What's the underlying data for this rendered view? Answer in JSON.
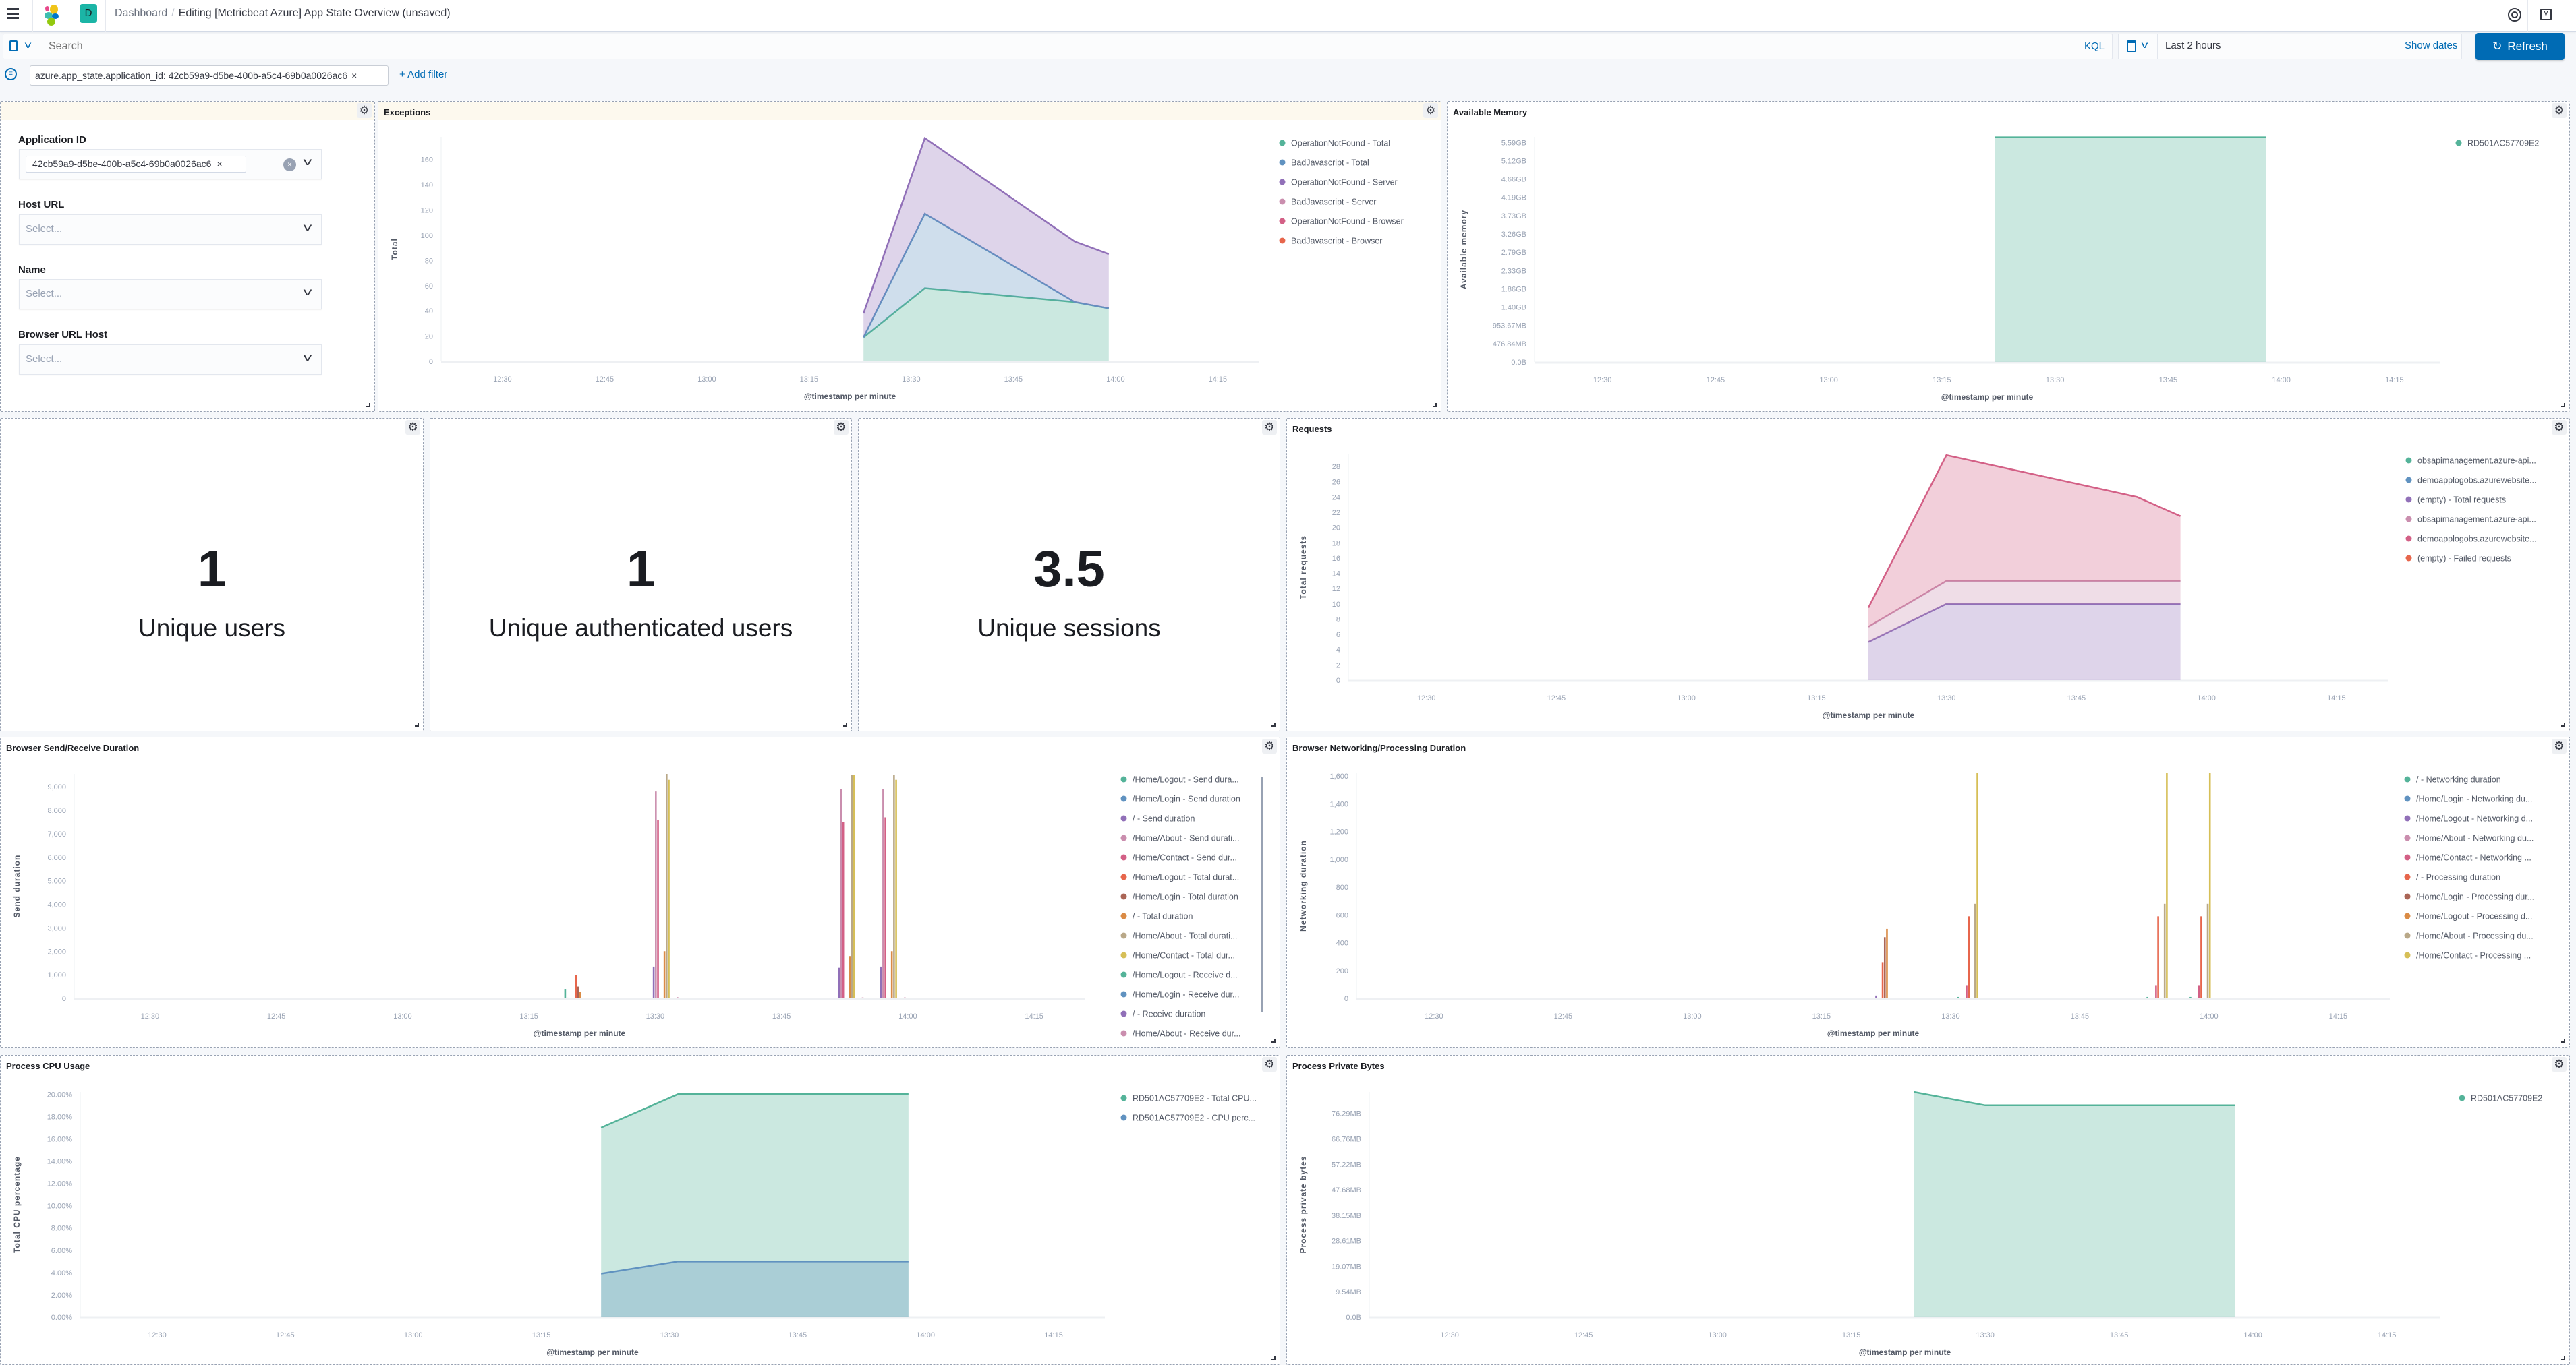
{
  "header": {
    "breadcrumb_root": "Dashboard",
    "breadcrumb_current": "Editing [Metricbeat Azure] App State Overview (unsaved)",
    "space_avatar": "D"
  },
  "query": {
    "placeholder": "Search",
    "language": "KQL",
    "time_range": "Last 2 hours",
    "show_dates": "Show dates",
    "refresh": "Refresh"
  },
  "filters": {
    "pill": "azure.app_state.application_id: 42cb59a9-d5be-400b-a5c4-69b0a0026ac6",
    "add": "+ Add filter"
  },
  "controls": {
    "application_id": {
      "label": "Application ID",
      "value": "42cb59a9-d5be-400b-a5c4-69b0a0026ac6"
    },
    "host_url": {
      "label": "Host URL",
      "placeholder": "Select..."
    },
    "name": {
      "label": "Name",
      "placeholder": "Select..."
    },
    "browser_url_host": {
      "label": "Browser URL Host",
      "placeholder": "Select..."
    }
  },
  "metrics": [
    {
      "value": "1",
      "label": "Unique users"
    },
    {
      "value": "1",
      "label": "Unique authenticated users"
    },
    {
      "value": "3.5",
      "label": "Unique sessions"
    }
  ],
  "chart_data": [
    {
      "title": "Exceptions",
      "type": "area",
      "stacked": true,
      "xlabel": "@timestamp per minute",
      "ylabel": "Total",
      "xlim": [
        "12:21",
        "14:21"
      ],
      "ylim": [
        0,
        178
      ],
      "xticks": [
        "12:30",
        "12:45",
        "13:00",
        "13:15",
        "13:30",
        "13:45",
        "14:00",
        "14:15"
      ],
      "yticks": [
        {
          "v": 0,
          "label": "0"
        },
        {
          "v": 20,
          "label": "20"
        },
        {
          "v": 40,
          "label": "40"
        },
        {
          "v": 60,
          "label": "60"
        },
        {
          "v": 80,
          "label": "80"
        },
        {
          "v": 100,
          "label": "100"
        },
        {
          "v": 120,
          "label": "120"
        },
        {
          "v": 140,
          "label": "140"
        },
        {
          "v": 160,
          "label": "160"
        }
      ],
      "x": [
        "13:23",
        "13:32",
        "13:54",
        "13:59"
      ],
      "series": [
        {
          "name": "OperationNotFound - Total",
          "color": "#54B399",
          "values": [
            19,
            58,
            47,
            42
          ]
        },
        {
          "name": "BadJavascript - Total",
          "color": "#6092C0",
          "values": [
            0,
            59,
            0,
            0
          ]
        },
        {
          "name": "OperationNotFound - Server",
          "color": "#9170B8",
          "values": [
            19,
            60,
            48,
            43
          ]
        },
        {
          "name": "BadJavascript - Server",
          "color": "#CA8EAE",
          "values": [
            0,
            0,
            0,
            0
          ]
        },
        {
          "name": "OperationNotFound - Browser",
          "color": "#D36086",
          "values": [
            0,
            0,
            0,
            0
          ]
        },
        {
          "name": "BadJavascript - Browser",
          "color": "#E7664C",
          "values": [
            0,
            0,
            0,
            0
          ]
        }
      ]
    },
    {
      "title": "Available Memory",
      "type": "area",
      "stacked": true,
      "xlabel": "@timestamp per minute",
      "ylabel": "Available memory",
      "xlim": [
        "12:21",
        "14:21"
      ],
      "ylim": [
        0,
        5.73
      ],
      "xticks": [
        "12:30",
        "12:45",
        "13:00",
        "13:15",
        "13:30",
        "13:45",
        "14:00",
        "14:15"
      ],
      "yticks": [
        {
          "v": 0,
          "label": "0.0B"
        },
        {
          "v": 0.4657,
          "label": "476.84MB"
        },
        {
          "v": 0.9313,
          "label": "953.67MB"
        },
        {
          "v": 1.397,
          "label": "1.40GB"
        },
        {
          "v": 1.8626,
          "label": "1.86GB"
        },
        {
          "v": 2.3283,
          "label": "2.33GB"
        },
        {
          "v": 2.794,
          "label": "2.79GB"
        },
        {
          "v": 3.2596,
          "label": "3.26GB"
        },
        {
          "v": 3.7253,
          "label": "3.73GB"
        },
        {
          "v": 4.191,
          "label": "4.19GB"
        },
        {
          "v": 4.6566,
          "label": "4.66GB"
        },
        {
          "v": 5.1223,
          "label": "5.12GB"
        },
        {
          "v": 5.588,
          "label": "5.59GB"
        }
      ],
      "x": [
        "13:22",
        "13:58"
      ],
      "series": [
        {
          "name": "RD501AC57709E2",
          "color": "#54B399",
          "values": [
            5.72,
            5.72
          ]
        }
      ]
    },
    {
      "title": "Requests",
      "type": "area",
      "stacked": true,
      "xlabel": "@timestamp per minute",
      "ylabel": "Total requests",
      "xlim": [
        "12:21",
        "14:21"
      ],
      "ylim": [
        0,
        29.6
      ],
      "xticks": [
        "12:30",
        "12:45",
        "13:00",
        "13:15",
        "13:30",
        "13:45",
        "14:00",
        "14:15"
      ],
      "yticks": [
        {
          "v": 0,
          "label": "0"
        },
        {
          "v": 2,
          "label": "2"
        },
        {
          "v": 4,
          "label": "4"
        },
        {
          "v": 6,
          "label": "6"
        },
        {
          "v": 8,
          "label": "8"
        },
        {
          "v": 10,
          "label": "10"
        },
        {
          "v": 12,
          "label": "12"
        },
        {
          "v": 14,
          "label": "14"
        },
        {
          "v": 16,
          "label": "16"
        },
        {
          "v": 18,
          "label": "18"
        },
        {
          "v": 20,
          "label": "20"
        },
        {
          "v": 22,
          "label": "22"
        },
        {
          "v": 24,
          "label": "24"
        },
        {
          "v": 26,
          "label": "26"
        },
        {
          "v": 28,
          "label": "28"
        }
      ],
      "x": [
        "13:21",
        "13:30",
        "13:52",
        "13:57"
      ],
      "series": [
        {
          "name": "obsapimanagement.azure-api...",
          "color": "#54B399",
          "values": [
            0,
            0,
            0,
            0
          ]
        },
        {
          "name": "demoapplogobs.azurewebsite...",
          "color": "#6092C0",
          "values": [
            0,
            0,
            0,
            0
          ]
        },
        {
          "name": "(empty) - Total requests",
          "color": "#9170B8",
          "values": [
            5,
            10,
            10,
            10
          ]
        },
        {
          "name": "obsapimanagement.azure-api...",
          "color": "#CA8EAE",
          "values": [
            2,
            3,
            3,
            3
          ]
        },
        {
          "name": "demoapplogobs.azurewebsite...",
          "color": "#D36086",
          "values": [
            2.5,
            16.5,
            11,
            8.5
          ]
        },
        {
          "name": "(empty) - Failed requests",
          "color": "#E7664C",
          "values": [
            0,
            0,
            0,
            0
          ]
        }
      ]
    },
    {
      "title": "Browser Send/Receive Duration",
      "type": "bar",
      "xlabel": "@timestamp per minute",
      "ylabel": "Send duration",
      "xlim": [
        "12:21",
        "14:21"
      ],
      "ylim": [
        0,
        9550
      ],
      "xticks": [
        "12:30",
        "12:45",
        "13:00",
        "13:15",
        "13:30",
        "13:45",
        "14:00",
        "14:15"
      ],
      "yticks": [
        {
          "v": 0,
          "label": "0"
        },
        {
          "v": 1000,
          "label": "1,000"
        },
        {
          "v": 2000,
          "label": "2,000"
        },
        {
          "v": 3000,
          "label": "3,000"
        },
        {
          "v": 4000,
          "label": "4,000"
        },
        {
          "v": 5000,
          "label": "5,000"
        },
        {
          "v": 6000,
          "label": "6,000"
        },
        {
          "v": 7000,
          "label": "7,000"
        },
        {
          "v": 8000,
          "label": "8,000"
        },
        {
          "v": 9000,
          "label": "9,000"
        }
      ],
      "x": [
        "13:21",
        "13:31",
        "13:53",
        "13:58"
      ],
      "series": [
        {
          "name": "/Home/Logout - Send dura...",
          "color": "#54B399",
          "values": [
            400,
            0,
            0,
            0
          ]
        },
        {
          "name": "/Home/Login - Send duration",
          "color": "#6092C0",
          "values": [
            30,
            0,
            0,
            0
          ]
        },
        {
          "name": "/ - Send duration",
          "color": "#9170B8",
          "values": [
            0,
            1350,
            1300,
            1350
          ]
        },
        {
          "name": "/Home/About - Send durati...",
          "color": "#CA8EAE",
          "values": [
            0,
            8800,
            8900,
            8900
          ]
        },
        {
          "name": "/Home/Contact - Send dur...",
          "color": "#D36086",
          "values": [
            0,
            7600,
            7500,
            7700
          ]
        },
        {
          "name": "/Home/Logout - Total durat...",
          "color": "#E7664C",
          "values": [
            1000,
            0,
            0,
            0
          ]
        },
        {
          "name": "/Home/Login - Total duration",
          "color": "#AA6556",
          "values": [
            500,
            0,
            0,
            0
          ]
        },
        {
          "name": "/ - Total duration",
          "color": "#DA8B45",
          "values": [
            280,
            2000,
            1800,
            2000
          ]
        },
        {
          "name": "/Home/About - Total durati...",
          "color": "#B9A888",
          "values": [
            0,
            9550,
            9500,
            9500
          ]
        },
        {
          "name": "/Home/Contact - Total dur...",
          "color": "#D6BF57",
          "values": [
            0,
            9300,
            9500,
            9300
          ]
        },
        {
          "name": "/Home/Logout - Receive d...",
          "color": "#54B399",
          "values": [
            20,
            0,
            0,
            0
          ]
        },
        {
          "name": "/Home/Login - Receive dur...",
          "color": "#6092C0",
          "values": [
            0,
            0,
            0,
            0
          ]
        },
        {
          "name": "/ - Receive duration",
          "color": "#9170B8",
          "values": [
            0,
            0,
            0,
            0
          ]
        },
        {
          "name": "/Home/About - Receive dur...",
          "color": "#CA8EAE",
          "values": [
            0,
            50,
            40,
            40
          ]
        }
      ]
    },
    {
      "title": "Browser Networking/Processing Duration",
      "type": "bar",
      "xlabel": "@timestamp per minute",
      "ylabel": "Networking duration",
      "xlim": [
        "12:21",
        "14:21"
      ],
      "ylim": [
        0,
        1620
      ],
      "xticks": [
        "12:30",
        "12:45",
        "13:00",
        "13:15",
        "13:30",
        "13:45",
        "14:00",
        "14:15"
      ],
      "yticks": [
        {
          "v": 0,
          "label": "0"
        },
        {
          "v": 200,
          "label": "200"
        },
        {
          "v": 400,
          "label": "400"
        },
        {
          "v": 600,
          "label": "600"
        },
        {
          "v": 800,
          "label": "800"
        },
        {
          "v": 1000,
          "label": "1,000"
        },
        {
          "v": 1200,
          "label": "1,200"
        },
        {
          "v": 1400,
          "label": "1,400"
        },
        {
          "v": 1600,
          "label": "1,600"
        }
      ],
      "x": [
        "13:22",
        "13:32",
        "13:54",
        "13:59"
      ],
      "series": [
        {
          "name": "/ - Networking duration",
          "color": "#54B399",
          "values": [
            0,
            10,
            10,
            10
          ]
        },
        {
          "name": "/Home/Login - Networking du...",
          "color": "#6092C0",
          "values": [
            0,
            0,
            0,
            0
          ]
        },
        {
          "name": "/Home/Logout - Networking d...",
          "color": "#9170B8",
          "values": [
            20,
            0,
            0,
            0
          ]
        },
        {
          "name": "/Home/About - Networking du...",
          "color": "#CA8EAE",
          "values": [
            0,
            5,
            5,
            5
          ]
        },
        {
          "name": "/Home/Contact - Networking ...",
          "color": "#D36086",
          "values": [
            0,
            90,
            90,
            90
          ]
        },
        {
          "name": "/ - Processing duration",
          "color": "#E7664C",
          "values": [
            260,
            590,
            590,
            590
          ]
        },
        {
          "name": "/Home/Login - Processing dur...",
          "color": "#AA6556",
          "values": [
            440,
            0,
            0,
            0
          ]
        },
        {
          "name": "/Home/Logout - Processing d...",
          "color": "#DA8B45",
          "values": [
            500,
            0,
            0,
            0
          ]
        },
        {
          "name": "/Home/About - Processing du...",
          "color": "#B9A888",
          "values": [
            0,
            680,
            680,
            680
          ]
        },
        {
          "name": "/Home/Contact - Processing ...",
          "color": "#D6BF57",
          "values": [
            0,
            1620,
            1620,
            1620
          ]
        }
      ]
    },
    {
      "title": "Process CPU Usage",
      "type": "area",
      "stacked": false,
      "xlabel": "@timestamp per minute",
      "ylabel": "Total CPU percentage",
      "xlim": [
        "12:21",
        "14:21"
      ],
      "ylim": [
        0,
        20.2
      ],
      "xticks": [
        "12:30",
        "12:45",
        "13:00",
        "13:15",
        "13:30",
        "13:45",
        "14:00",
        "14:15"
      ],
      "yticks": [
        {
          "v": 0,
          "label": "0.00%"
        },
        {
          "v": 2,
          "label": "2.00%"
        },
        {
          "v": 4,
          "label": "4.00%"
        },
        {
          "v": 6,
          "label": "6.00%"
        },
        {
          "v": 8,
          "label": "8.00%"
        },
        {
          "v": 10,
          "label": "10.00%"
        },
        {
          "v": 12,
          "label": "12.00%"
        },
        {
          "v": 14,
          "label": "14.00%"
        },
        {
          "v": 16,
          "label": "16.00%"
        },
        {
          "v": 18,
          "label": "18.00%"
        },
        {
          "v": 20,
          "label": "20.00%"
        }
      ],
      "x": [
        "13:22",
        "13:31",
        "13:58"
      ],
      "series": [
        {
          "name": "RD501AC57709E2 - Total CPU...",
          "color": "#54B399",
          "values": [
            17,
            20,
            20
          ]
        },
        {
          "name": "RD501AC57709E2 - CPU perc...",
          "color": "#6092C0",
          "values": [
            3.9,
            5,
            5
          ]
        }
      ]
    },
    {
      "title": "Process Private Bytes",
      "type": "area",
      "stacked": true,
      "xlabel": "@timestamp per minute",
      "ylabel": "Process private bytes",
      "xlim": [
        "12:21",
        "14:21"
      ],
      "ylim": [
        0,
        84.3
      ],
      "xticks": [
        "12:30",
        "12:45",
        "13:00",
        "13:15",
        "13:30",
        "13:45",
        "14:00",
        "14:15"
      ],
      "yticks": [
        {
          "v": 0,
          "label": "0.0B"
        },
        {
          "v": 9.54,
          "label": "9.54MB"
        },
        {
          "v": 19.07,
          "label": "19.07MB"
        },
        {
          "v": 28.61,
          "label": "28.61MB"
        },
        {
          "v": 38.15,
          "label": "38.15MB"
        },
        {
          "v": 47.68,
          "label": "47.68MB"
        },
        {
          "v": 57.22,
          "label": "57.22MB"
        },
        {
          "v": 66.76,
          "label": "66.76MB"
        },
        {
          "v": 76.29,
          "label": "76.29MB"
        }
      ],
      "x": [
        "13:22",
        "13:30",
        "13:58"
      ],
      "series": [
        {
          "name": "RD501AC57709E2",
          "color": "#54B399",
          "values": [
            84.3,
            79.3,
            79.3
          ]
        }
      ]
    }
  ]
}
